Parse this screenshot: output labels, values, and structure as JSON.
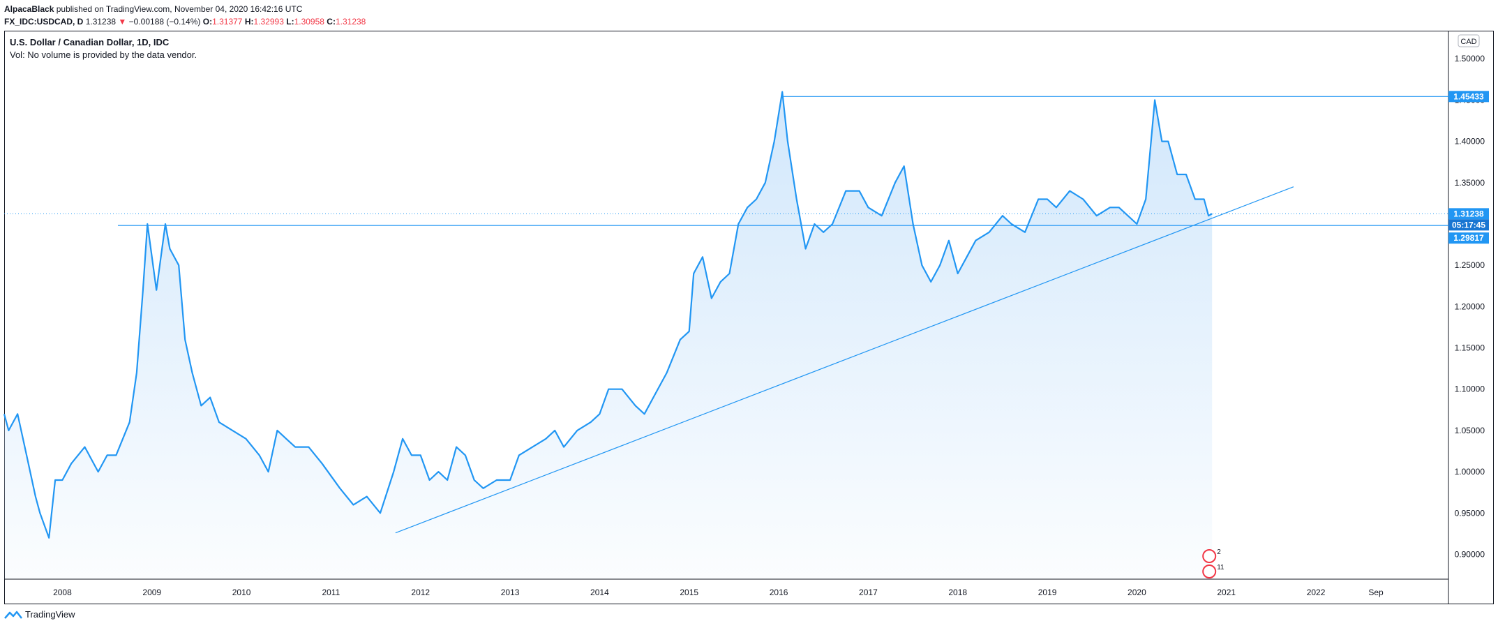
{
  "header": {
    "author": "AlpacaBlack",
    "published": "published on TradingView.com, November 04, 2020 16:42:16 UTC"
  },
  "ohlc": {
    "symbol": "FX_IDC:USDCAD, D",
    "last": "1.31238",
    "arrow": "▼",
    "change": "−0.00188 (−0.14%)",
    "o_label": "O:",
    "o": "1.31377",
    "h_label": "H:",
    "h": "1.32993",
    "l_label": "L:",
    "l": "1.30958",
    "c_label": "C:",
    "c": "1.31238"
  },
  "legend": {
    "title": "U.S. Dollar / Canadian Dollar, 1D, IDC",
    "volume": "Vol: No volume is provided by the data vendor."
  },
  "footer": {
    "brand": "TradingView"
  },
  "colors": {
    "line": "#2196f3",
    "area_top": "#cfe6fb",
    "badge": "#2196f3",
    "badge_dark": "#1976d2",
    "text": "#131722",
    "red": "#f23645"
  },
  "chart_data": {
    "type": "area",
    "title": "U.S. Dollar / Canadian Dollar, 1D, IDC",
    "currency_label": "CAD",
    "x_start_year": 2007.35,
    "x_end_year": 2023.48,
    "ylim": [
      0.87,
      1.534
    ],
    "y_ticks": [
      "1.50000",
      "1.45000",
      "1.40000",
      "1.35000",
      "1.30000",
      "1.25000",
      "1.20000",
      "1.15000",
      "1.10000",
      "1.05000",
      "1.00000",
      "0.95000",
      "0.90000"
    ],
    "y_tick_values": [
      1.5,
      1.45,
      1.4,
      1.35,
      1.3,
      1.25,
      1.2,
      1.15,
      1.1,
      1.05,
      1.0,
      0.95,
      0.9
    ],
    "x_ticks": [
      {
        "label": "2008",
        "t": 2008.0
      },
      {
        "label": "2009",
        "t": 2009.0
      },
      {
        "label": "2010",
        "t": 2010.0
      },
      {
        "label": "2011",
        "t": 2011.0
      },
      {
        "label": "2012",
        "t": 2012.0
      },
      {
        "label": "2013",
        "t": 2013.0
      },
      {
        "label": "2014",
        "t": 2014.0
      },
      {
        "label": "2015",
        "t": 2015.0
      },
      {
        "label": "2016",
        "t": 2016.0
      },
      {
        "label": "2017",
        "t": 2017.0
      },
      {
        "label": "2018",
        "t": 2018.0
      },
      {
        "label": "2019",
        "t": 2019.0
      },
      {
        "label": "2020",
        "t": 2020.0
      },
      {
        "label": "2021",
        "t": 2021.0
      },
      {
        "label": "2022",
        "t": 2022.0
      },
      {
        "label": "Sep",
        "t": 2022.67
      }
    ],
    "series": [
      {
        "name": "USDCAD",
        "points": [
          [
            2007.35,
            1.07
          ],
          [
            2007.4,
            1.05
          ],
          [
            2007.5,
            1.07
          ],
          [
            2007.6,
            1.02
          ],
          [
            2007.7,
            0.97
          ],
          [
            2007.75,
            0.95
          ],
          [
            2007.85,
            0.92
          ],
          [
            2007.92,
            0.99
          ],
          [
            2008.0,
            0.99
          ],
          [
            2008.1,
            1.01
          ],
          [
            2008.25,
            1.03
          ],
          [
            2008.4,
            1.0
          ],
          [
            2008.5,
            1.02
          ],
          [
            2008.6,
            1.02
          ],
          [
            2008.75,
            1.06
          ],
          [
            2008.83,
            1.12
          ],
          [
            2008.9,
            1.22
          ],
          [
            2008.95,
            1.3
          ],
          [
            2009.05,
            1.22
          ],
          [
            2009.15,
            1.3
          ],
          [
            2009.2,
            1.27
          ],
          [
            2009.3,
            1.25
          ],
          [
            2009.37,
            1.16
          ],
          [
            2009.45,
            1.12
          ],
          [
            2009.55,
            1.08
          ],
          [
            2009.65,
            1.09
          ],
          [
            2009.75,
            1.06
          ],
          [
            2009.9,
            1.05
          ],
          [
            2010.05,
            1.04
          ],
          [
            2010.2,
            1.02
          ],
          [
            2010.3,
            1.0
          ],
          [
            2010.4,
            1.05
          ],
          [
            2010.5,
            1.04
          ],
          [
            2010.6,
            1.03
          ],
          [
            2010.75,
            1.03
          ],
          [
            2010.9,
            1.01
          ],
          [
            2011.1,
            0.98
          ],
          [
            2011.25,
            0.96
          ],
          [
            2011.4,
            0.97
          ],
          [
            2011.55,
            0.95
          ],
          [
            2011.7,
            1.0
          ],
          [
            2011.8,
            1.04
          ],
          [
            2011.9,
            1.02
          ],
          [
            2012.0,
            1.02
          ],
          [
            2012.1,
            0.99
          ],
          [
            2012.2,
            1.0
          ],
          [
            2012.3,
            0.99
          ],
          [
            2012.4,
            1.03
          ],
          [
            2012.5,
            1.02
          ],
          [
            2012.6,
            0.99
          ],
          [
            2012.7,
            0.98
          ],
          [
            2012.85,
            0.99
          ],
          [
            2013.0,
            0.99
          ],
          [
            2013.1,
            1.02
          ],
          [
            2013.25,
            1.03
          ],
          [
            2013.4,
            1.04
          ],
          [
            2013.5,
            1.05
          ],
          [
            2013.6,
            1.03
          ],
          [
            2013.75,
            1.05
          ],
          [
            2013.9,
            1.06
          ],
          [
            2014.0,
            1.07
          ],
          [
            2014.1,
            1.1
          ],
          [
            2014.25,
            1.1
          ],
          [
            2014.4,
            1.08
          ],
          [
            2014.5,
            1.07
          ],
          [
            2014.6,
            1.09
          ],
          [
            2014.75,
            1.12
          ],
          [
            2014.9,
            1.16
          ],
          [
            2015.0,
            1.17
          ],
          [
            2015.05,
            1.24
          ],
          [
            2015.15,
            1.26
          ],
          [
            2015.25,
            1.21
          ],
          [
            2015.35,
            1.23
          ],
          [
            2015.45,
            1.24
          ],
          [
            2015.55,
            1.3
          ],
          [
            2015.65,
            1.32
          ],
          [
            2015.75,
            1.33
          ],
          [
            2015.85,
            1.35
          ],
          [
            2015.95,
            1.4
          ],
          [
            2016.04,
            1.46
          ],
          [
            2016.1,
            1.4
          ],
          [
            2016.2,
            1.33
          ],
          [
            2016.3,
            1.27
          ],
          [
            2016.4,
            1.3
          ],
          [
            2016.5,
            1.29
          ],
          [
            2016.6,
            1.3
          ],
          [
            2016.75,
            1.34
          ],
          [
            2016.9,
            1.34
          ],
          [
            2017.0,
            1.32
          ],
          [
            2017.15,
            1.31
          ],
          [
            2017.3,
            1.35
          ],
          [
            2017.4,
            1.37
          ],
          [
            2017.5,
            1.3
          ],
          [
            2017.6,
            1.25
          ],
          [
            2017.7,
            1.23
          ],
          [
            2017.8,
            1.25
          ],
          [
            2017.9,
            1.28
          ],
          [
            2018.0,
            1.24
          ],
          [
            2018.1,
            1.26
          ],
          [
            2018.2,
            1.28
          ],
          [
            2018.35,
            1.29
          ],
          [
            2018.5,
            1.31
          ],
          [
            2018.6,
            1.3
          ],
          [
            2018.75,
            1.29
          ],
          [
            2018.9,
            1.33
          ],
          [
            2019.0,
            1.33
          ],
          [
            2019.1,
            1.32
          ],
          [
            2019.25,
            1.34
          ],
          [
            2019.4,
            1.33
          ],
          [
            2019.55,
            1.31
          ],
          [
            2019.7,
            1.32
          ],
          [
            2019.8,
            1.32
          ],
          [
            2019.9,
            1.31
          ],
          [
            2020.0,
            1.3
          ],
          [
            2020.1,
            1.33
          ],
          [
            2020.2,
            1.45
          ],
          [
            2020.28,
            1.4
          ],
          [
            2020.35,
            1.4
          ],
          [
            2020.45,
            1.36
          ],
          [
            2020.55,
            1.36
          ],
          [
            2020.65,
            1.33
          ],
          [
            2020.75,
            1.33
          ],
          [
            2020.8,
            1.31
          ],
          [
            2020.84,
            1.31238
          ]
        ]
      }
    ],
    "annotations": {
      "resistance_level": 1.45433,
      "support_level": 1.29817,
      "last_price_level": 1.31238,
      "countdown": "05:17:45",
      "price_labels": [
        "1.45433",
        "1.31238",
        "1.29817"
      ],
      "trendline": {
        "from": [
          2011.72,
          0.926
        ],
        "to": [
          2021.75,
          1.345
        ]
      },
      "event_badges": [
        "2",
        "11"
      ]
    }
  }
}
